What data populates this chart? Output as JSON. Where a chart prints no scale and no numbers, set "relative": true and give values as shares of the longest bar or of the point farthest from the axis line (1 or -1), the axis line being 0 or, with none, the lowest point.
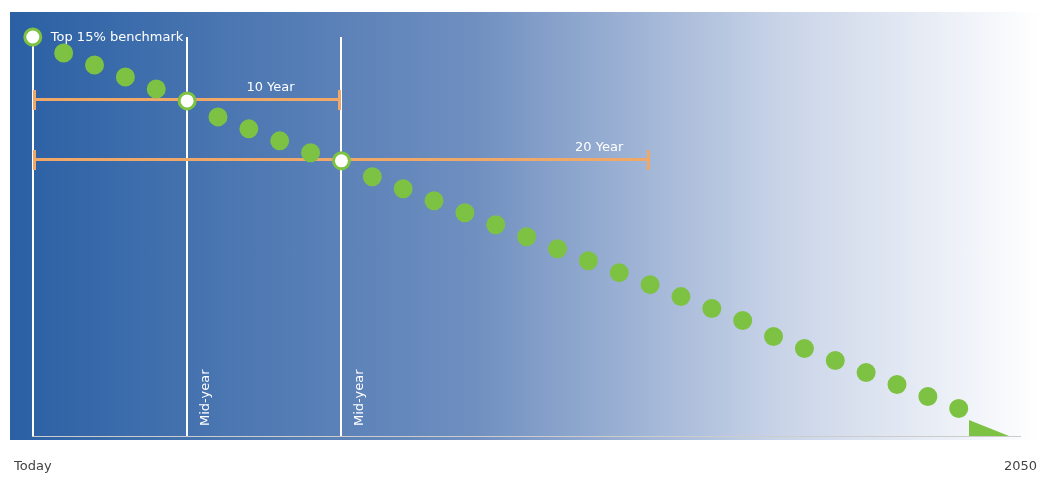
{
  "chart_data": {
    "type": "scatter",
    "relative": true,
    "categories": [
      "Today",
      null,
      null,
      null,
      null,
      null,
      null,
      null,
      null,
      null,
      null,
      null,
      null,
      null,
      null,
      null,
      null,
      null,
      null,
      null,
      null,
      null,
      null,
      null,
      null,
      null,
      null,
      null,
      null,
      null,
      null,
      null,
      "2050"
    ],
    "series": [
      {
        "color": "#7dc242",
        "colors": [
          "#ffffff",
          "#7dc242",
          "#7dc242",
          "#7dc242",
          "#7dc242",
          "#ffffff",
          "#7dc242",
          "#7dc242",
          "#7dc242",
          "#7dc242",
          "#ffffff",
          "#7dc242",
          "#7dc242",
          "#7dc242",
          "#7dc242",
          "#7dc242",
          "#7dc242",
          "#7dc242",
          "#7dc242",
          "#7dc242",
          "#7dc242",
          "#7dc242",
          "#7dc242",
          "#7dc242",
          "#7dc242",
          "#7dc242",
          "#7dc242",
          "#7dc242",
          "#7dc242",
          "#7dc242",
          "#7dc242",
          null,
          null
        ],
        "values": [
          1,
          0.96,
          0.93,
          0.9,
          0.87,
          0.84,
          0.8,
          0.77,
          0.74,
          0.71,
          0.69,
          0.65,
          0.62,
          0.59,
          0.56,
          0.53,
          0.5,
          0.47,
          0.44,
          0.41,
          0.38,
          0.35,
          0.32,
          0.29,
          0.25,
          0.22,
          0.19,
          0.16,
          0.13,
          0.1,
          0.07,
          null,
          null
        ]
      }
    ],
    "marker": "circle",
    "legend": false,
    "annotations": [
      "Top 15% benchmark",
      "10 Year",
      "20 Year",
      "Mid-year",
      "Mid-year"
    ]
  }
}
